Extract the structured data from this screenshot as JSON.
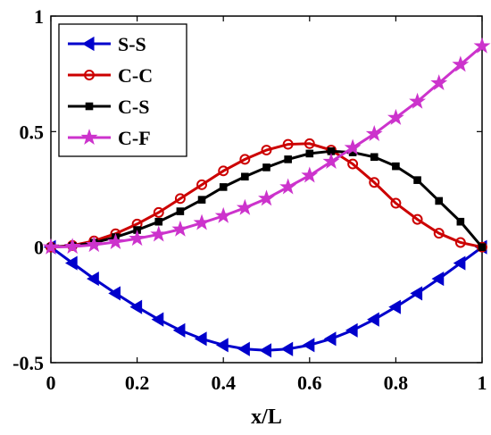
{
  "chart_data": {
    "type": "line",
    "xlabel": "x/L",
    "ylabel": "",
    "xlim": [
      0,
      1
    ],
    "ylim": [
      -0.5,
      1
    ],
    "xticks": [
      "0",
      "0.2",
      "0.4",
      "0.6",
      "0.8",
      "1"
    ],
    "yticks": [
      "-0.5",
      "0",
      "0.5",
      "1"
    ],
    "grid": false,
    "legend": "top-left",
    "x": [
      0,
      0.05,
      0.1,
      0.15,
      0.2,
      0.25,
      0.3,
      0.35,
      0.4,
      0.45,
      0.5,
      0.55,
      0.6,
      0.65,
      0.7,
      0.75,
      0.8,
      0.85,
      0.9,
      0.95,
      1.0
    ],
    "series": [
      {
        "name": "S-S",
        "color": "#0000cc",
        "marker": "triangle-left",
        "values": [
          0,
          -0.069,
          -0.137,
          -0.2,
          -0.259,
          -0.313,
          -0.36,
          -0.397,
          -0.424,
          -0.441,
          -0.447,
          -0.441,
          -0.424,
          -0.397,
          -0.36,
          -0.313,
          -0.259,
          -0.2,
          -0.137,
          -0.069,
          0
        ]
      },
      {
        "name": "C-C",
        "color": "#cc0000",
        "marker": "circle",
        "values": [
          0,
          0.007,
          0.027,
          0.058,
          0.1,
          0.15,
          0.21,
          0.27,
          0.33,
          0.38,
          0.42,
          0.445,
          0.448,
          0.42,
          0.36,
          0.28,
          0.19,
          0.12,
          0.06,
          0.02,
          0
        ]
      },
      {
        "name": "C-S",
        "color": "#000000",
        "marker": "square",
        "values": [
          0,
          0.005,
          0.019,
          0.043,
          0.074,
          0.11,
          0.155,
          0.205,
          0.26,
          0.305,
          0.345,
          0.38,
          0.405,
          0.415,
          0.41,
          0.39,
          0.35,
          0.29,
          0.2,
          0.11,
          0
        ]
      },
      {
        "name": "C-F",
        "color": "#cc33cc",
        "marker": "star",
        "values": [
          0,
          0.002,
          0.01,
          0.022,
          0.037,
          0.055,
          0.077,
          0.105,
          0.135,
          0.17,
          0.21,
          0.26,
          0.31,
          0.37,
          0.43,
          0.49,
          0.56,
          0.63,
          0.71,
          0.79,
          0.87
        ]
      }
    ]
  }
}
